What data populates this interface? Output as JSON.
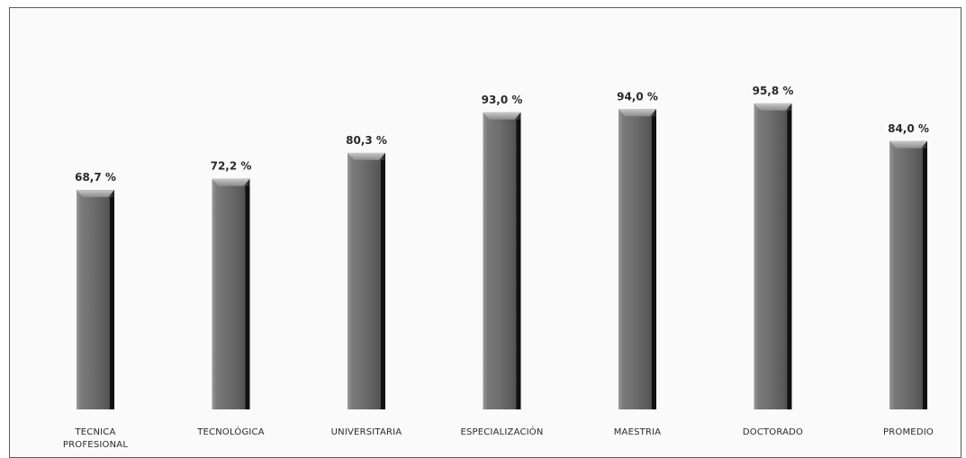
{
  "chart_data": {
    "type": "bar",
    "categories": [
      [
        "TECNICA",
        "PROFESIONAL"
      ],
      [
        "TECNOLÓGICA"
      ],
      [
        "UNIVERSITARIA"
      ],
      [
        "ESPECIALIZACIÓN"
      ],
      [
        "MAESTRIA"
      ],
      [
        "DOCTORADO"
      ],
      [
        "PROMEDIO"
      ]
    ],
    "values": [
      68.7,
      72.2,
      80.3,
      93.0,
      94.0,
      95.8,
      84.0
    ],
    "data_labels": [
      "68,7 %",
      "72,2 %",
      "80,3 %",
      "93,0 %",
      "94,0 %",
      "95,8 %",
      "84,0 %"
    ],
    "ylim": [
      0,
      100
    ],
    "grid": false,
    "legend": "none",
    "bar_color": "#6e6e6e"
  }
}
